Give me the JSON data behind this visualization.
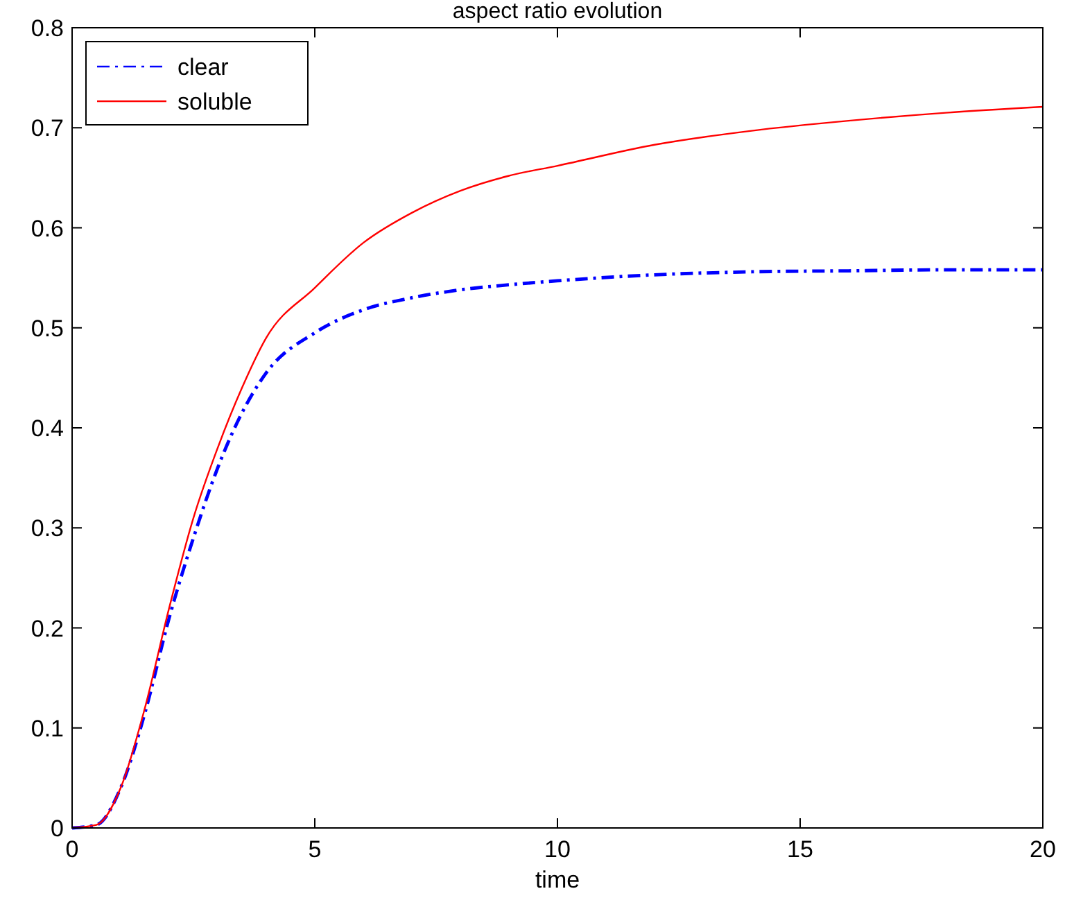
{
  "chart_data": {
    "type": "line",
    "title": "aspect ratio evolution",
    "xlabel": "time",
    "xlim": [
      0,
      20
    ],
    "xticks": [
      0,
      5,
      10,
      15,
      20
    ],
    "ylim": [
      0,
      0.8
    ],
    "yticks": [
      0,
      0.1,
      0.2,
      0.3,
      0.4,
      0.5,
      0.6,
      0.7,
      0.8
    ],
    "legend": "top left",
    "marker": "none",
    "grid": false,
    "x": [
      0,
      0.5,
      1,
      1.5,
      2,
      2.5,
      3,
      3.5,
      4,
      5,
      6,
      7,
      8,
      9,
      10,
      12,
      14,
      16,
      18,
      20
    ],
    "series": [
      {
        "name": "clear",
        "color": "#0000ff",
        "line_style": "dashdot",
        "values": [
          0,
          0.003,
          0.04,
          0.115,
          0.21,
          0.29,
          0.36,
          0.415,
          0.455,
          0.495,
          0.518,
          0.53,
          0.538,
          0.543,
          0.547,
          0.553,
          0.556,
          0.557,
          0.558,
          0.558
        ]
      },
      {
        "name": "soluble",
        "color": "#ff0000",
        "line_style": "solid",
        "values": [
          0,
          0.003,
          0.04,
          0.12,
          0.22,
          0.31,
          0.38,
          0.44,
          0.49,
          0.54,
          0.585,
          0.615,
          0.637,
          0.652,
          0.662,
          0.683,
          0.697,
          0.707,
          0.715,
          0.721
        ]
      }
    ]
  }
}
